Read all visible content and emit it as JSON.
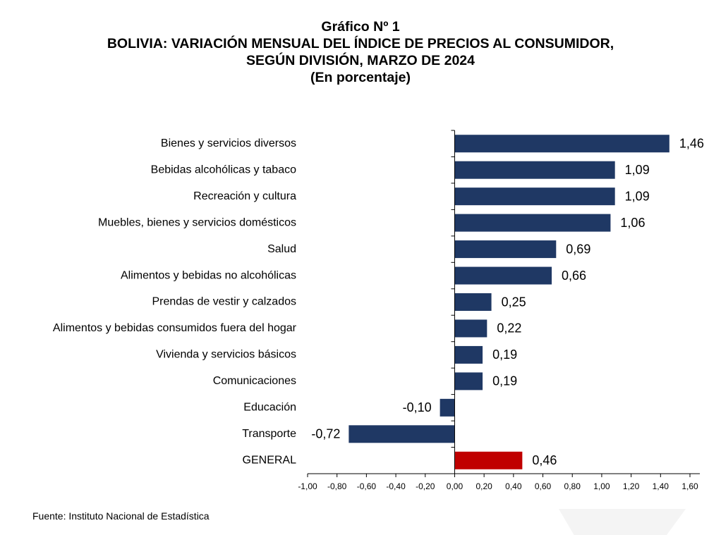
{
  "title_lines": [
    "Gráfico Nº 1",
    "BOLIVIA: VARIACIÓN MENSUAL DEL ÍNDICE DE PRECIOS AL CONSUMIDOR,",
    "SEGÚN DIVISIÓN, MARZO DE 2024",
    "(En porcentaje)"
  ],
  "source": "Fuente: Instituto Nacional de Estadística",
  "colors": {
    "bar": "#1f3864",
    "highlight": "#c00000",
    "axis": "#000000"
  },
  "chart_data": {
    "type": "bar",
    "orientation": "horizontal",
    "title": "Gráfico Nº 1 — BOLIVIA: VARIACIÓN MENSUAL DEL ÍNDICE DE PRECIOS AL CONSUMIDOR, SEGÚN DIVISIÓN, MARZO DE 2024",
    "subtitle": "(En porcentaje)",
    "categories": [
      "Bienes y servicios diversos",
      "Bebidas alcohólicas y tabaco",
      "Recreación y cultura",
      "Muebles, bienes y servicios domésticos",
      "Salud",
      "Alimentos y bebidas no alcohólicas",
      "Prendas de vestir y calzados",
      "Alimentos y bebidas consumidos fuera del hogar",
      "Vivienda y servicios básicos",
      "Comunicaciones",
      "Educación",
      "Transporte",
      "GENERAL"
    ],
    "values": [
      1.46,
      1.09,
      1.09,
      1.06,
      0.69,
      0.66,
      0.25,
      0.22,
      0.19,
      0.19,
      -0.1,
      -0.72,
      0.46
    ],
    "value_labels": [
      "1,46",
      "1,09",
      "1,09",
      "1,06",
      "0,69",
      "0,66",
      "0,25",
      "0,22",
      "0,19",
      "0,19",
      "-0,10",
      "-0,72",
      "0,46"
    ],
    "highlight_category": "GENERAL",
    "xlim": [
      -1.0,
      1.6
    ],
    "x_ticks": [
      -1.0,
      -0.8,
      -0.6,
      -0.4,
      -0.2,
      0.0,
      0.2,
      0.4,
      0.6,
      0.8,
      1.0,
      1.2,
      1.4,
      1.6
    ],
    "x_tick_labels": [
      "-1,00",
      "-0,80",
      "-0,60",
      "-0,40",
      "-0,20",
      "0,00",
      "0,20",
      "0,40",
      "0,60",
      "0,80",
      "1,00",
      "1,20",
      "1,40",
      "1,60"
    ],
    "grid": false,
    "legend": "none",
    "xlabel": "",
    "ylabel": ""
  }
}
